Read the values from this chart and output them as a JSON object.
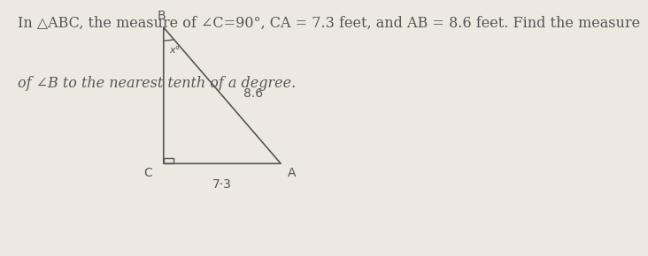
{
  "background_color": "#ede9e1",
  "text_color": "#555555",
  "title_line1": "In △ABC, the measure of ∠C=90°, CA = 7.3 feet, and AB = 8.6 feet. Find the measure",
  "title_line2": "of ∠B to the nearest tenth of a degree.",
  "B": [
    0.33,
    0.92
  ],
  "C": [
    0.33,
    0.35
  ],
  "A": [
    0.58,
    0.35
  ],
  "label_B": "B",
  "label_C": "C",
  "label_A": "A",
  "label_AB": "8.6",
  "label_CA": "7·3",
  "label_angle": "x°",
  "line_color": "#555555",
  "label_color": "#555555",
  "font_size_title": 11.5,
  "font_size_labels": 10,
  "font_size_angle": 8,
  "sq_size": 0.022
}
